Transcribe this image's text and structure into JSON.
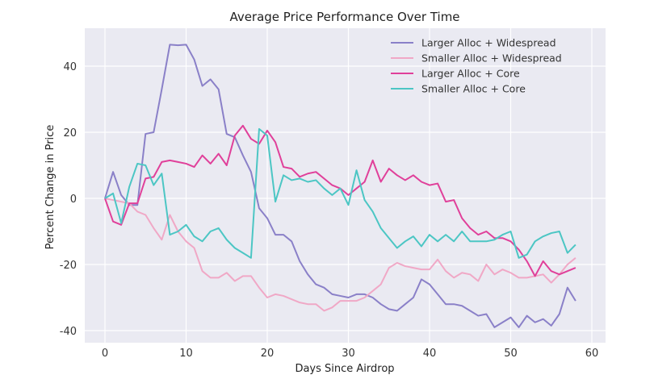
{
  "chart_data": {
    "type": "line",
    "title": "Average Price Performance Over Time",
    "xlabel": "Days Since Airdrop",
    "ylabel": "Percent Change in Price",
    "xlim": [
      -2.5,
      60.5
    ],
    "ylim": [
      -44,
      51
    ],
    "xticks": [
      0,
      10,
      20,
      30,
      40,
      50,
      60
    ],
    "yticks": [
      -40,
      -20,
      0,
      20,
      40
    ],
    "grid": true,
    "legend": "top-right",
    "background": "#eaeaf2",
    "x": [
      0,
      1,
      2,
      3,
      4,
      5,
      6,
      7,
      8,
      9,
      10,
      11,
      12,
      13,
      14,
      15,
      16,
      17,
      18,
      19,
      20,
      21,
      22,
      23,
      24,
      25,
      26,
      27,
      28,
      29,
      30,
      31,
      32,
      33,
      34,
      35,
      36,
      37,
      38,
      39,
      40,
      41,
      42,
      43,
      44,
      45,
      46,
      47,
      48,
      49,
      50,
      51,
      52,
      53,
      54,
      55,
      56,
      57,
      58
    ],
    "series": [
      {
        "name": "Larger Alloc + Widespread",
        "color": "#8a80c8",
        "values": [
          0,
          8,
          1,
          -2,
          -2,
          19.5,
          20,
          33,
          46.5,
          46.3,
          46.5,
          42,
          34,
          36,
          33,
          19.5,
          18.5,
          13,
          8,
          -3,
          -6,
          -11,
          -11,
          -13,
          -19,
          -23,
          -26,
          -27,
          -29,
          -29.5,
          -30,
          -29,
          -29,
          -30,
          -32,
          -33.5,
          -34,
          -32,
          -30,
          -24.5,
          -26,
          -29,
          -32,
          -32,
          -32.5,
          -34,
          -35.5,
          -35,
          -39,
          -37.5,
          -36,
          -39,
          -35.5,
          -37.5,
          -36.5,
          -38.5,
          -35,
          -27,
          -31
        ]
      },
      {
        "name": "Smaller Alloc + Widespread",
        "color": "#f0a8c6",
        "values": [
          0,
          -0.5,
          -1,
          -1.5,
          -4,
          -5,
          -9,
          -12.5,
          -5,
          -10,
          -13,
          -15,
          -22,
          -24,
          -24,
          -22.5,
          -25,
          -23.5,
          -23.5,
          -27,
          -30,
          -29,
          -29.5,
          -30.5,
          -31.5,
          -32,
          -32,
          -34,
          -33,
          -31,
          -31,
          -31,
          -30,
          -28,
          -26,
          -21,
          -19.5,
          -20.5,
          -21,
          -21.5,
          -21.5,
          -18.5,
          -22,
          -24,
          -22.5,
          -23,
          -25,
          -20,
          -23,
          -21.5,
          -22.5,
          -24,
          -24,
          -23.5,
          -23,
          -25.5,
          -23,
          -20,
          -18
        ]
      },
      {
        "name": "Larger Alloc + Core",
        "color": "#e0409a",
        "values": [
          0,
          -7,
          -8,
          -1.5,
          -1.5,
          6,
          6.5,
          11,
          11.5,
          11,
          10.5,
          9.5,
          13,
          10.5,
          13.5,
          10,
          19,
          22,
          18,
          16.5,
          20.5,
          17,
          9.5,
          9,
          6.5,
          7.5,
          8,
          6,
          4,
          3,
          1,
          3,
          5,
          11.5,
          5,
          9,
          7,
          5.5,
          7,
          5,
          4,
          4.5,
          -1,
          -0.5,
          -6,
          -9,
          -11,
          -10,
          -12,
          -12,
          -13,
          -15.5,
          -19,
          -23.5,
          -19,
          -22,
          -23,
          -22,
          -21
        ]
      },
      {
        "name": "Smaller Alloc + Core",
        "color": "#4cc6c4",
        "values": [
          0,
          1.5,
          -7.5,
          3.5,
          10.5,
          10,
          4,
          7.5,
          -11,
          -10,
          -8,
          -11.5,
          -13,
          -10,
          -9,
          -12.5,
          -15,
          -16.5,
          -18,
          21,
          19,
          -1,
          7,
          5.5,
          6,
          5,
          5.5,
          3,
          1,
          3,
          -2,
          8.5,
          -0.5,
          -4,
          -9,
          -12,
          -15,
          -13,
          -11.5,
          -14.5,
          -11,
          -13,
          -11,
          -13,
          -10,
          -13,
          -13,
          -13,
          -12.5,
          -11,
          -10,
          -18,
          -17,
          -13,
          -11.5,
          -10.5,
          -10,
          -16.5,
          -14
        ]
      }
    ]
  }
}
